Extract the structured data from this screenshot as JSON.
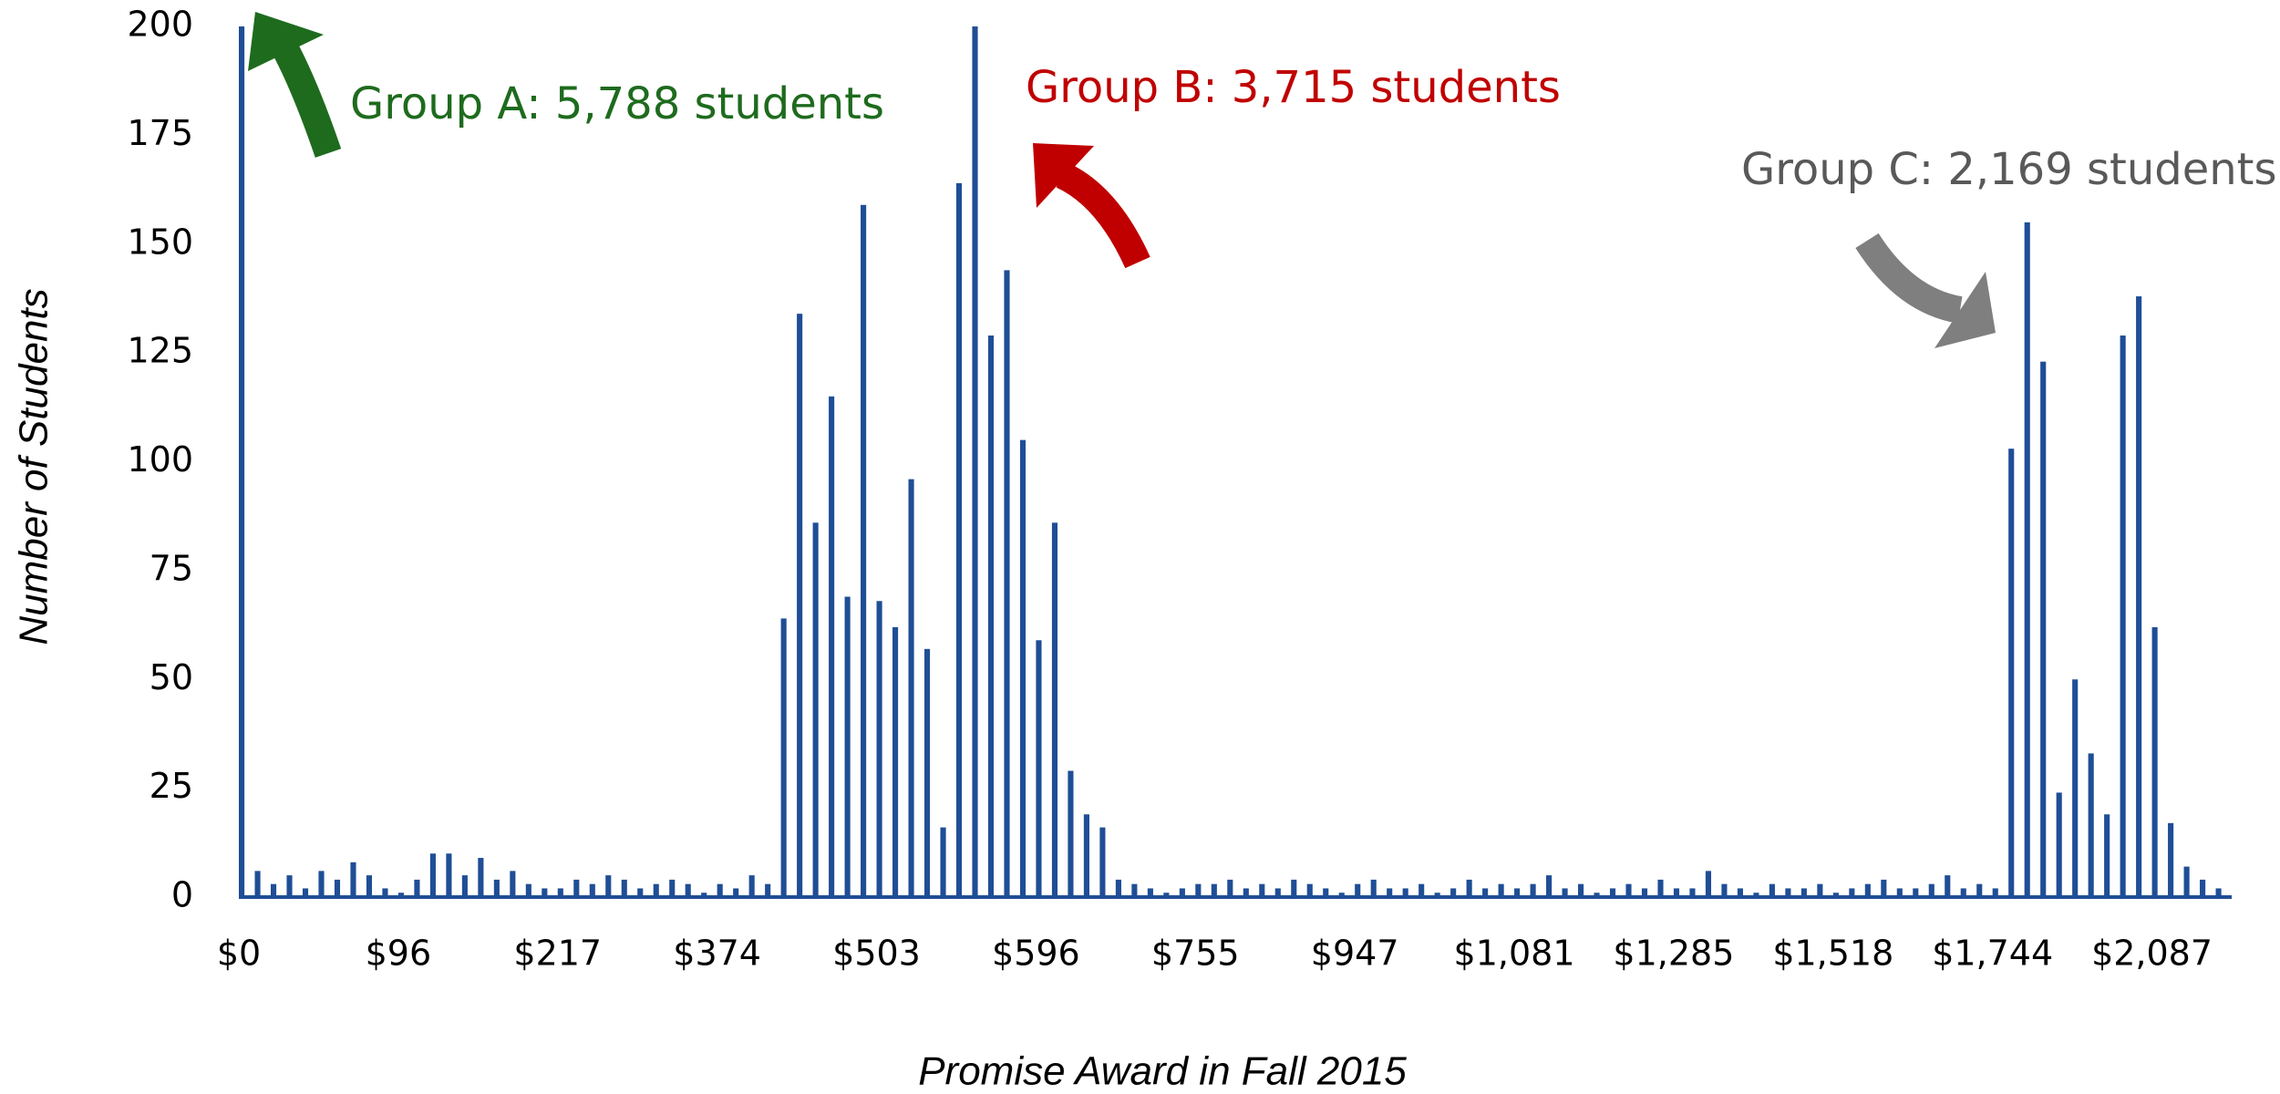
{
  "chart_data": {
    "type": "bar",
    "x_label": "Promise Award in Fall 2015",
    "y_label": "Number of Students",
    "color": "#1f4e96",
    "ylim": [
      0,
      200
    ],
    "yticks": [
      0,
      25,
      50,
      75,
      100,
      125,
      150,
      175,
      200
    ],
    "annotations": [
      {
        "text": "Group A: 5,788 students",
        "color": "#1e6b1e"
      },
      {
        "text": "Group B: 3,715 students",
        "color": "#c00000"
      },
      {
        "text": "Group C: 2,169 students",
        "color": "#595959"
      }
    ],
    "categories": [
      "$0",
      null,
      null,
      null,
      null,
      null,
      null,
      null,
      null,
      null,
      "$96",
      null,
      null,
      null,
      null,
      null,
      null,
      null,
      null,
      null,
      "$217",
      null,
      null,
      null,
      null,
      null,
      null,
      null,
      null,
      null,
      "$374",
      null,
      null,
      null,
      null,
      null,
      null,
      null,
      null,
      null,
      "$503",
      null,
      null,
      null,
      null,
      null,
      null,
      null,
      null,
      null,
      "$596",
      null,
      null,
      null,
      null,
      null,
      null,
      null,
      null,
      null,
      "$755",
      null,
      null,
      null,
      null,
      null,
      null,
      null,
      null,
      null,
      "$947",
      null,
      null,
      null,
      null,
      null,
      null,
      null,
      null,
      null,
      "$1,081",
      null,
      null,
      null,
      null,
      null,
      null,
      null,
      null,
      null,
      "$1,285",
      null,
      null,
      null,
      null,
      null,
      null,
      null,
      null,
      null,
      "$1,518",
      null,
      null,
      null,
      null,
      null,
      null,
      null,
      null,
      null,
      "$1,744",
      null,
      null,
      null,
      null,
      null,
      null,
      null,
      null,
      null,
      "$2,087",
      null,
      null,
      null,
      null
    ],
    "values": [
      200,
      6,
      3,
      5,
      2,
      6,
      4,
      8,
      5,
      2,
      1,
      4,
      10,
      10,
      5,
      9,
      4,
      6,
      3,
      2,
      2,
      4,
      3,
      5,
      4,
      2,
      3,
      4,
      3,
      1,
      3,
      2,
      5,
      3,
      64,
      134,
      86,
      115,
      69,
      159,
      68,
      62,
      96,
      57,
      16,
      164,
      200,
      129,
      144,
      105,
      59,
      86,
      29,
      19,
      16,
      4,
      3,
      2,
      1,
      2,
      3,
      3,
      4,
      2,
      3,
      2,
      4,
      3,
      2,
      1,
      3,
      4,
      2,
      2,
      3,
      1,
      2,
      4,
      2,
      3,
      2,
      3,
      5,
      2,
      3,
      1,
      2,
      3,
      2,
      4,
      2,
      2,
      6,
      3,
      2,
      1,
      3,
      2,
      2,
      3,
      1,
      2,
      3,
      4,
      2,
      2,
      3,
      5,
      2,
      3,
      2,
      103,
      155,
      123,
      24,
      50,
      33,
      19,
      129,
      138,
      62,
      17,
      7,
      4,
      2
    ]
  }
}
